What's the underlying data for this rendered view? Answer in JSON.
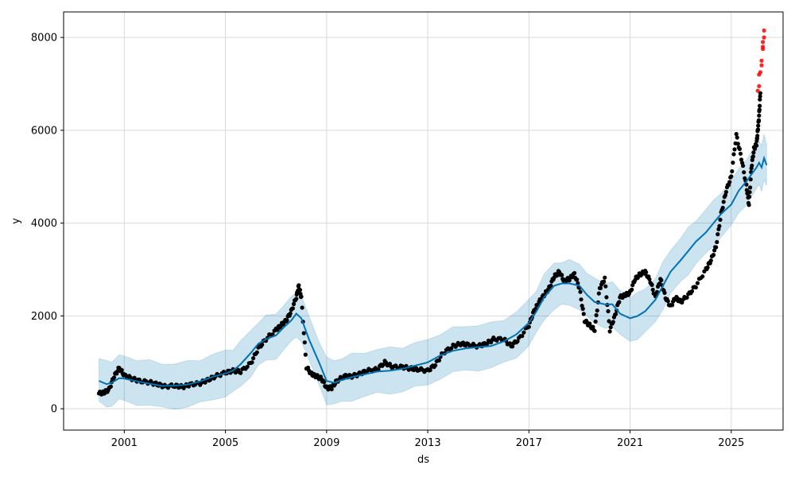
{
  "chart_data": {
    "type": "line",
    "title": "",
    "xlabel": "ds",
    "ylabel": "y",
    "xlim": [
      1998.6,
      2027.05
    ],
    "ylim": [
      -460,
      8550
    ],
    "grid": true,
    "x_ticks": [
      {
        "value": 2001,
        "label": "2001"
      },
      {
        "value": 2005,
        "label": "2005"
      },
      {
        "value": 2009,
        "label": "2009"
      },
      {
        "value": 2013,
        "label": "2013"
      },
      {
        "value": 2017,
        "label": "2017"
      },
      {
        "value": 2021,
        "label": "2021"
      },
      {
        "value": 2025,
        "label": "2025"
      }
    ],
    "y_ticks": [
      {
        "value": 0,
        "label": "0"
      },
      {
        "value": 2000,
        "label": "2000"
      },
      {
        "value": 4000,
        "label": "4000"
      },
      {
        "value": 6000,
        "label": "6000"
      },
      {
        "value": 8000,
        "label": "8000"
      }
    ],
    "colors": {
      "forecast_line": "#0072B2",
      "uncertainty_band": "#0072B2",
      "observed_points": "#000000",
      "highlighted_points": "#ff0000",
      "grid": "#d9d9d9"
    },
    "forecast": {
      "x": [
        2000.0,
        2000.3,
        2000.5,
        2000.8,
        2001.0,
        2001.5,
        2002.0,
        2002.5,
        2003.0,
        2003.5,
        2004.0,
        2004.5,
        2005.0,
        2005.3,
        2005.6,
        2006.0,
        2006.3,
        2006.6,
        2007.0,
        2007.3,
        2007.6,
        2007.8,
        2008.0,
        2008.3,
        2008.7,
        2009.0,
        2009.3,
        2009.6,
        2010.0,
        2010.5,
        2011.0,
        2011.5,
        2012.0,
        2012.5,
        2013.0,
        2013.5,
        2014.0,
        2014.5,
        2015.0,
        2015.5,
        2016.0,
        2016.5,
        2017.0,
        2017.3,
        2017.6,
        2018.0,
        2018.3,
        2018.6,
        2019.0,
        2019.3,
        2019.6,
        2020.0,
        2020.3,
        2020.6,
        2021.0,
        2021.3,
        2021.6,
        2022.0,
        2022.3,
        2022.6,
        2023.0,
        2023.3,
        2023.6,
        2024.0,
        2024.3,
        2024.6,
        2025.0,
        2025.3,
        2025.6,
        2026.0,
        2026.1,
        2026.2,
        2026.3,
        2026.4
      ],
      "y": [
        600,
        530,
        560,
        660,
        650,
        590,
        540,
        490,
        500,
        520,
        590,
        690,
        760,
        820,
        960,
        1200,
        1400,
        1500,
        1580,
        1750,
        1900,
        2050,
        1950,
        1500,
        1000,
        600,
        560,
        620,
        680,
        740,
        800,
        820,
        860,
        930,
        1000,
        1150,
        1250,
        1300,
        1330,
        1350,
        1450,
        1600,
        1850,
        2100,
        2400,
        2650,
        2700,
        2700,
        2650,
        2450,
        2300,
        2250,
        2250,
        2050,
        1950,
        2000,
        2100,
        2350,
        2650,
        2950,
        3200,
        3400,
        3600,
        3800,
        4000,
        4200,
        4400,
        4700,
        4900,
        5200,
        5300,
        5200,
        5400,
        5250
      ],
      "band": 800
    },
    "observed": {
      "x": [
        2000.0,
        2000.2,
        2000.4,
        2000.6,
        2000.8,
        2001.0,
        2001.3,
        2001.6,
        2002.0,
        2002.3,
        2002.6,
        2003.0,
        2003.3,
        2003.6,
        2004.0,
        2004.3,
        2004.6,
        2005.0,
        2005.3,
        2005.6,
        2006.0,
        2006.3,
        2006.6,
        2007.0,
        2007.2,
        2007.4,
        2007.6,
        2007.8,
        2007.9,
        2008.0,
        2008.2,
        2008.4,
        2008.6,
        2008.8,
        2009.0,
        2009.2,
        2009.4,
        2009.7,
        2010.0,
        2010.3,
        2010.6,
        2011.0,
        2011.3,
        2011.6,
        2012.0,
        2012.3,
        2012.6,
        2013.0,
        2013.3,
        2013.6,
        2014.0,
        2014.3,
        2014.6,
        2015.0,
        2015.3,
        2015.6,
        2016.0,
        2016.3,
        2016.6,
        2017.0,
        2017.2,
        2017.4,
        2017.6,
        2017.8,
        2018.0,
        2018.2,
        2018.4,
        2018.6,
        2018.8,
        2019.0,
        2019.2,
        2019.4,
        2019.6,
        2019.8,
        2020.0,
        2020.2,
        2020.4,
        2020.6,
        2020.8,
        2021.0,
        2021.2,
        2021.4,
        2021.6,
        2021.8,
        2022.0,
        2022.2,
        2022.4,
        2022.6,
        2022.8,
        2023.0,
        2023.3,
        2023.6,
        2024.0,
        2024.2,
        2024.4,
        2024.6,
        2024.8,
        2025.0,
        2025.2,
        2025.4,
        2025.6,
        2025.7,
        2025.8,
        2025.9,
        2026.0,
        2026.05,
        2026.1,
        2026.15
      ],
      "y": [
        330,
        350,
        420,
        700,
        880,
        720,
        650,
        600,
        570,
        530,
        480,
        500,
        470,
        520,
        550,
        620,
        700,
        780,
        820,
        800,
        980,
        1300,
        1500,
        1700,
        1800,
        1900,
        2100,
        2400,
        2650,
        2400,
        900,
        750,
        700,
        650,
        450,
        450,
        600,
        700,
        700,
        750,
        820,
        850,
        1000,
        900,
        900,
        870,
        850,
        820,
        950,
        1200,
        1350,
        1400,
        1380,
        1350,
        1400,
        1500,
        1500,
        1350,
        1500,
        1800,
        2100,
        2300,
        2450,
        2600,
        2850,
        2950,
        2750,
        2800,
        2900,
        2600,
        1900,
        1800,
        1700,
        2600,
        2800,
        1700,
        2000,
        2400,
        2450,
        2500,
        2800,
        2900,
        2950,
        2750,
        2400,
        2800,
        2400,
        2200,
        2400,
        2300,
        2450,
        2650,
        3000,
        3200,
        3500,
        4200,
        4700,
        5000,
        5900,
        5400,
        4800,
        4400,
        5200,
        5600,
        5700,
        6000,
        6300,
        6800
      ],
      "highlighted_x": [
        2026.05,
        2026.1,
        2026.1,
        2026.15,
        2026.2,
        2026.2,
        2026.25,
        2026.25,
        2026.25,
        2026.3,
        2026.3
      ],
      "highlighted_y": [
        6850,
        6950,
        7200,
        7250,
        7400,
        7500,
        7750,
        7800,
        7900,
        8000,
        8150
      ]
    }
  }
}
